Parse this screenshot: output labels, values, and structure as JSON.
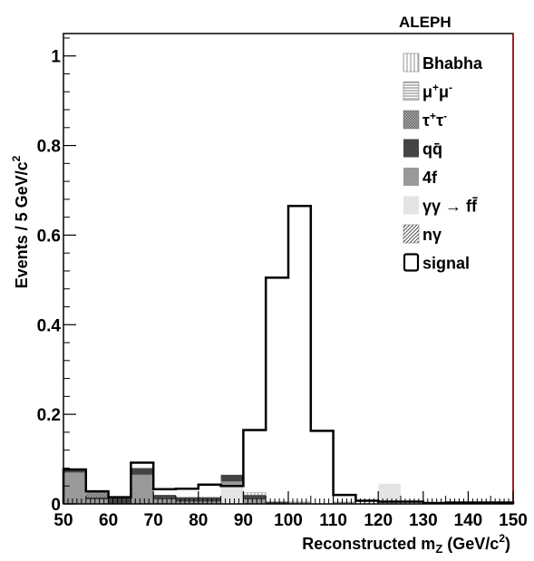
{
  "chart_data": {
    "type": "bar",
    "experiment_label": "ALEPH",
    "xlabel": "Reconstructed m_Z (GeV/c²)",
    "xlabel_main": "Reconstructed m",
    "xlabel_sub": "Z",
    "xlabel_units": " (GeV/c",
    "xlabel_units_sup": "2",
    "xlabel_units_close": ")",
    "ylabel": "Events / 5 GeV/c²",
    "ylabel_main": "Events / 5 GeV/c",
    "ylabel_sup": "2",
    "xlim": [
      50,
      150
    ],
    "ylim": [
      0,
      1.05
    ],
    "bin_width": 5,
    "x_ticks": [
      50,
      60,
      70,
      80,
      90,
      100,
      110,
      120,
      130,
      140,
      150
    ],
    "y_ticks": [
      0,
      0.2,
      0.4,
      0.6,
      0.8,
      1
    ],
    "y_tick_labels": [
      "0",
      "0.2",
      "0.4",
      "0.6",
      "0.8",
      "1"
    ],
    "bin_low_edges": [
      50,
      55,
      60,
      65,
      70,
      75,
      80,
      85,
      90,
      95,
      100,
      105,
      110,
      115,
      120,
      125,
      130,
      135,
      140,
      145
    ],
    "backgrounds": [
      {
        "name": "Bhabha",
        "name_parts": {
          "main": "Bhabha"
        },
        "color": "#ffffff",
        "pattern": "vertical",
        "values": [
          0,
          0,
          0,
          0,
          0,
          0,
          0,
          0,
          0.005,
          0,
          0,
          0,
          0,
          0,
          0,
          0,
          0,
          0,
          0,
          0
        ]
      },
      {
        "name": "μ+μ-",
        "name_parts": {
          "main": "μ",
          "sup1": "+",
          "main2": "μ",
          "sup2": "-"
        },
        "color": "#ffffff",
        "pattern": "horizontal",
        "values": [
          0,
          0,
          0,
          0,
          0,
          0,
          0,
          0,
          0,
          0,
          0,
          0,
          0,
          0,
          0,
          0,
          0,
          0,
          0,
          0
        ]
      },
      {
        "name": "τ+τ-",
        "name_parts": {
          "main": "τ",
          "sup1": "+",
          "main2": "τ",
          "sup2": "-"
        },
        "color": "#aaaaaa",
        "pattern": "crosshatch",
        "values": [
          0,
          0.015,
          0,
          0,
          0,
          0,
          0,
          0,
          0,
          0,
          0,
          0,
          0,
          0,
          0,
          0,
          0,
          0,
          0,
          0
        ]
      },
      {
        "name": "qq̄",
        "name_parts": {
          "main": "qq̄"
        },
        "color": "#444444",
        "pattern": "solid",
        "values": [
          0.005,
          0.005,
          0.015,
          0.015,
          0.01,
          0.01,
          0.01,
          0.015,
          0.01,
          0.005,
          0,
          0,
          0,
          0,
          0,
          0,
          0,
          0,
          0,
          0
        ]
      },
      {
        "name": "4f",
        "name_parts": {
          "main": "4f"
        },
        "color": "#999999",
        "pattern": "solid",
        "values": [
          0.07,
          0.01,
          0,
          0.065,
          0.01,
          0.005,
          0.005,
          0.01,
          0.01,
          0,
          0.005,
          0,
          0.005,
          0,
          0,
          0,
          0,
          0,
          0,
          0
        ]
      },
      {
        "name": "γγ → ff̄",
        "name_parts": {
          "main": "γγ → ff̄"
        },
        "color": "#e4e4e4",
        "pattern": "solid",
        "values": [
          0,
          0,
          0,
          0,
          0,
          0,
          0,
          0.04,
          0,
          0,
          0,
          0,
          0,
          0,
          0.045,
          0,
          0,
          0,
          0,
          0
        ]
      },
      {
        "name": "nγ",
        "name_parts": {
          "main": "nγ"
        },
        "color": "#ffffff",
        "pattern": "diagonal",
        "values": [
          0,
          0,
          0,
          0,
          0,
          0,
          0,
          0,
          0,
          0,
          0,
          0,
          0,
          0,
          0,
          0,
          0,
          0,
          0,
          0
        ]
      }
    ],
    "signal": {
      "name": "signal",
      "totals": [
        0.077,
        0.028,
        0.015,
        0.092,
        0.033,
        0.034,
        0.043,
        0.04,
        0.165,
        0.505,
        0.665,
        0.163,
        0.02,
        0.007,
        0.005,
        0.005,
        0.002,
        0.003,
        0.003,
        0.003
      ]
    },
    "legend_position": "top-right",
    "grid": false
  }
}
